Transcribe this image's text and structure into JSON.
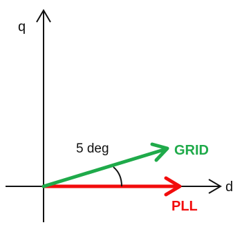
{
  "axes": {
    "q_label": "q",
    "d_label": "d"
  },
  "angle": {
    "label": "5 deg"
  },
  "vectors": {
    "grid": {
      "label": "GRID",
      "color": "#1faa4a"
    },
    "pll": {
      "label": "PLL",
      "color": "#f20c0c"
    }
  },
  "colors": {
    "axis": "#111111",
    "background": "#ffffff"
  }
}
